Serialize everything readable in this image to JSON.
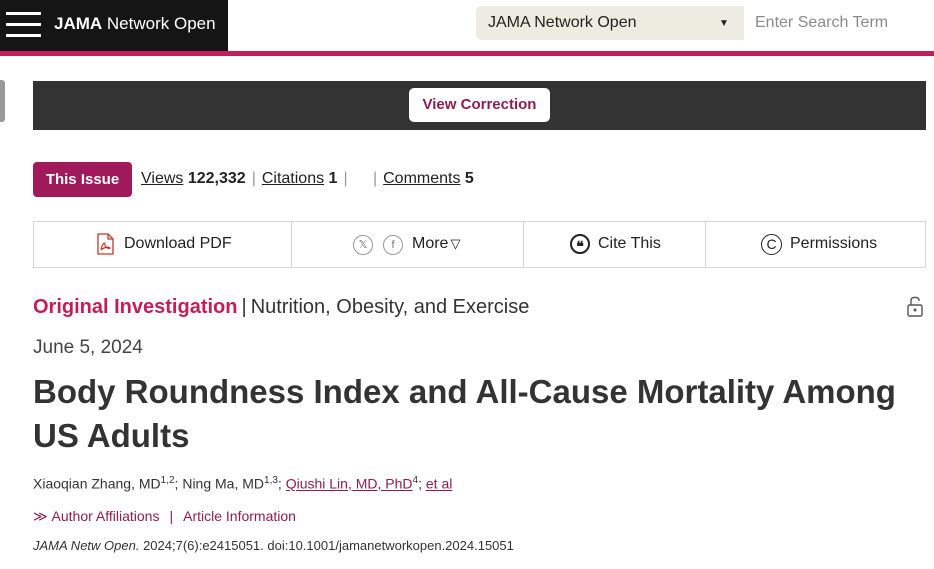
{
  "header": {
    "brand_bold": "JAMA",
    "brand_rest": " Network Open",
    "journal_select": "JAMA Network Open",
    "search_placeholder": "Enter Search Term"
  },
  "correction": {
    "button_label": "View Correction"
  },
  "metrics": {
    "this_issue_label": "This Issue",
    "views_label": "Views",
    "views_value": "122,332",
    "citations_label": "Citations",
    "citations_value": "1",
    "comments_label": "Comments",
    "comments_value": "5"
  },
  "toolbar": {
    "download_pdf": "Download PDF",
    "share_x": "𝕏",
    "share_facebook": "f",
    "more": "More",
    "more_caret": "▽",
    "cite_this": "Cite This",
    "cite_icon": "❝",
    "permissions": "Permissions",
    "permissions_icon": "C"
  },
  "article": {
    "type": "Original Investigation",
    "separator": "|",
    "topic": "Nutrition, Obesity, and Exercise",
    "date": "June 5, 2024",
    "title": "Body Roundness Index and All-Cause Mortality Among US Adults",
    "authors": [
      {
        "name": "Xiaoqian Zhang, MD",
        "sup": "1,2"
      },
      {
        "name": "Ning Ma, MD",
        "sup": "1,3"
      },
      {
        "name": "Qiushi Lin, MD, PhD",
        "sup": "4"
      }
    ],
    "et_al": "et al",
    "author_affiliations": "Author Affiliations",
    "article_information": "Article Information",
    "citation_journal": "JAMA Netw Open.",
    "citation_rest": " 2024;7(6):e2415051. doi:10.1001/jamanetworkopen.2024.15051"
  },
  "colors": {
    "accent": "#c41e5a",
    "link": "#8d1e52",
    "dark_bar": "#333333"
  },
  "icons": [
    "hamburger-menu-icon",
    "pdf-icon",
    "x-share-icon",
    "facebook-icon",
    "cite-quote-icon",
    "copyright-icon",
    "unlock-icon"
  ]
}
